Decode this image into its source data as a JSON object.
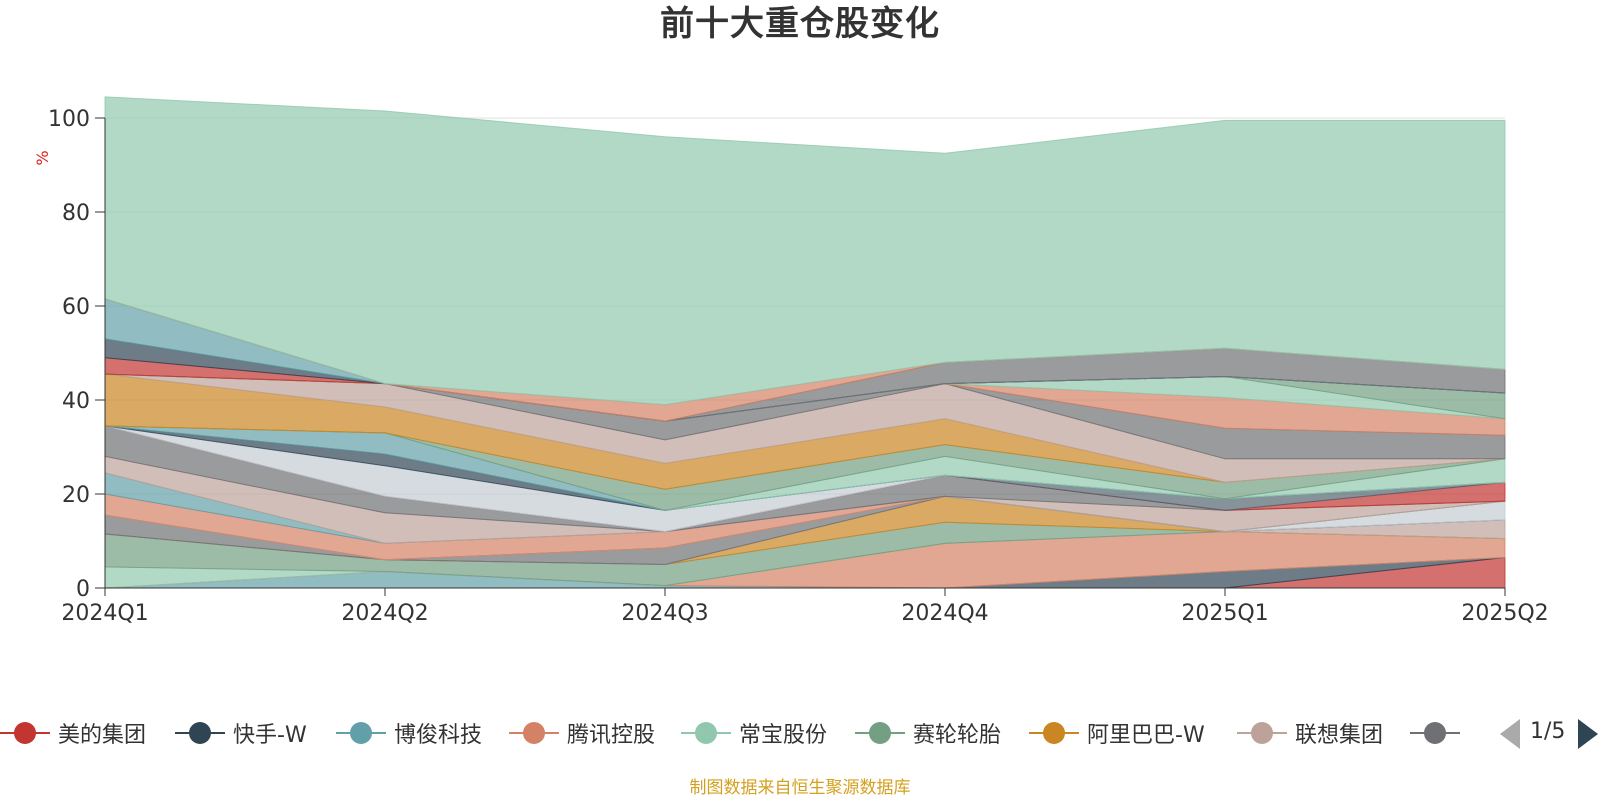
{
  "title": "前十大重仓股变化",
  "footer": "制图数据来自恒生聚源数据库",
  "pager": {
    "text": "1/5"
  },
  "legend": [
    {
      "name": "美的集团",
      "color": "#c23531"
    },
    {
      "name": "快手-W",
      "color": "#2f4554"
    },
    {
      "name": "博俊科技",
      "color": "#61a0a8"
    },
    {
      "name": "腾讯控股",
      "color": "#d48265"
    },
    {
      "name": "常宝股份",
      "color": "#91c7ae"
    },
    {
      "name": "赛轮轮胎",
      "color": "#749f83"
    },
    {
      "name": "阿里巴巴-W",
      "color": "#ca8622"
    },
    {
      "name": "联想集团",
      "color": "#bda29a"
    },
    {
      "name": "",
      "color": "#6e7074"
    }
  ],
  "chart_data": {
    "type": "area",
    "title": "前十大重仓股变化",
    "ylabel": "%",
    "ylim": [
      0,
      100
    ],
    "yticks": [
      0,
      20,
      40,
      60,
      80,
      100
    ],
    "grid": true,
    "legend_position": "bottom",
    "categories": [
      "2024Q1",
      "2024Q2",
      "2024Q3",
      "2024Q4",
      "2025Q1",
      "2025Q2"
    ],
    "series": [
      {
        "name": "美的集团",
        "color": "#c23531",
        "values": [
          0,
          0,
          0,
          0,
          0,
          6.5
        ]
      },
      {
        "name": "快手-W",
        "color": "#2f4554",
        "values": [
          0,
          0,
          0,
          0,
          3.5,
          0
        ]
      },
      {
        "name": "博俊科技",
        "color": "#61a0a8",
        "values": [
          0,
          3.5,
          0.5,
          0,
          0,
          0
        ]
      },
      {
        "name": "腾讯控股",
        "color": "#d48265",
        "values": [
          0,
          0,
          0,
          9.5,
          8.5,
          4
        ]
      },
      {
        "name": "常宝股份",
        "color": "#91c7ae",
        "values": [
          4.5,
          0,
          0,
          0,
          0,
          0
        ]
      },
      {
        "name": "赛轮轮胎",
        "color": "#749f83",
        "values": [
          7,
          2.5,
          4.5,
          4.5,
          0,
          0
        ]
      },
      {
        "name": "阿里巴巴-W",
        "color": "#ca8622",
        "values": [
          0,
          0,
          0,
          5.5,
          0,
          0
        ]
      },
      {
        "name": "联想集团",
        "color": "#bda29a",
        "values": [
          0,
          0,
          0,
          0,
          0,
          4
        ]
      },
      {
        "name": "",
        "color": "#6e7074",
        "values": [
          4,
          0,
          3.5,
          0,
          0,
          0
        ]
      },
      {
        "name": "",
        "color": "#546570",
        "values": [
          0,
          0,
          0,
          0,
          0,
          0
        ]
      },
      {
        "name": "",
        "color": "#c4ccd3",
        "values": [
          0,
          0,
          0,
          0,
          0,
          4
        ]
      },
      {
        "name": "",
        "color": "#d48265",
        "values": [
          4.5,
          3.5,
          3.5,
          0,
          0,
          0
        ]
      },
      {
        "name": "",
        "color": "#61a0a8",
        "values": [
          4.5,
          0,
          0,
          0,
          0,
          0
        ]
      },
      {
        "name": "",
        "color": "#bda29a",
        "values": [
          3.5,
          6.5,
          0,
          0,
          4.5,
          0
        ]
      },
      {
        "name": "",
        "color": "#6e7074",
        "values": [
          6.5,
          3.5,
          0,
          4.5,
          0,
          0
        ]
      },
      {
        "name": "",
        "color": "#c23531",
        "values": [
          0,
          0,
          0,
          0,
          0,
          4
        ]
      },
      {
        "name": "",
        "color": "#546570",
        "values": [
          0,
          0,
          0,
          0,
          2.5,
          0
        ]
      },
      {
        "name": "",
        "color": "#c4ccd3",
        "values": [
          0,
          6.5,
          4.5,
          0,
          0,
          0
        ]
      },
      {
        "name": "",
        "color": "#2f4554",
        "values": [
          0,
          2.5,
          0,
          0,
          0,
          0
        ]
      },
      {
        "name": "",
        "color": "#61a0a8",
        "values": [
          0,
          4.5,
          0,
          0,
          0,
          0
        ]
      },
      {
        "name": "",
        "color": "#91c7ae",
        "values": [
          0,
          0,
          0,
          4,
          0,
          5
        ]
      },
      {
        "name": "",
        "color": "#749f83",
        "values": [
          0,
          0,
          4.5,
          2.5,
          3.5,
          0
        ]
      },
      {
        "name": "",
        "color": "#ca8622",
        "values": [
          11,
          5.5,
          5.5,
          5.5,
          0,
          0
        ]
      },
      {
        "name": "",
        "color": "#bda29a",
        "values": [
          0,
          5,
          5,
          7.5,
          5,
          0
        ]
      },
      {
        "name": "",
        "color": "#6e7074",
        "values": [
          0,
          0,
          4,
          0,
          6.5,
          5
        ]
      },
      {
        "name": "",
        "color": "#d48265",
        "values": [
          0,
          0,
          0,
          0,
          6.5,
          3.5
        ]
      },
      {
        "name": "",
        "color": "#91c7ae",
        "values": [
          0,
          0,
          0,
          0,
          4.5,
          0
        ]
      },
      {
        "name": "",
        "color": "#749f83",
        "values": [
          0,
          0,
          0,
          0,
          0,
          5.5
        ]
      },
      {
        "name": "",
        "color": "#c23531",
        "values": [
          3.5,
          0,
          0,
          0,
          0,
          0
        ]
      },
      {
        "name": "",
        "color": "#2f4554",
        "values": [
          4,
          0,
          0,
          0,
          0,
          0
        ]
      },
      {
        "name": "",
        "color": "#61a0a8",
        "values": [
          8.5,
          0,
          0,
          0,
          0,
          0
        ]
      },
      {
        "name": "",
        "color": "#6e7074",
        "values": [
          0,
          0,
          0,
          4.5,
          6,
          5
        ]
      },
      {
        "name": "",
        "color": "#d48265",
        "values": [
          0,
          0,
          3.5,
          0,
          0,
          0
        ]
      },
      {
        "name": "",
        "color": "#91c7ae",
        "values": [
          43,
          58,
          57,
          44.5,
          48.5,
          53
        ]
      }
    ]
  }
}
